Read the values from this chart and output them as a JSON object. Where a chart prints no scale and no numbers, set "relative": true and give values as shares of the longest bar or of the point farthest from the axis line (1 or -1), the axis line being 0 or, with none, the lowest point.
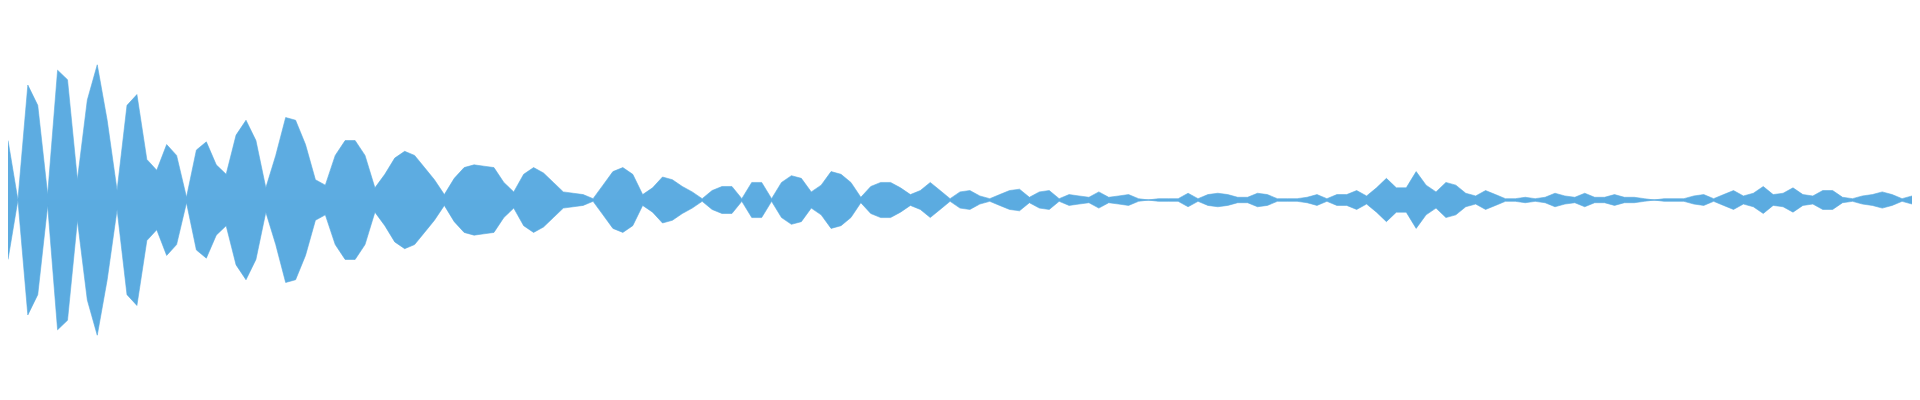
{
  "chart_data": {
    "type": "area",
    "relative": true,
    "ref_lines": [
      {
        "axis": "y",
        "value": 0,
        "color": "#5dace1"
      }
    ],
    "categories": [
      null,
      null,
      null,
      null,
      null,
      null,
      null,
      null,
      null,
      null,
      null,
      null,
      null,
      null,
      null,
      null,
      null,
      null,
      null,
      null,
      null,
      null,
      null,
      null,
      null,
      null,
      null,
      null,
      null,
      null,
      null,
      null,
      null,
      null,
      null,
      null,
      null,
      null,
      null,
      null,
      null,
      null,
      null,
      null,
      null,
      null,
      null,
      null,
      null,
      null,
      null,
      null,
      null,
      null,
      null,
      null,
      null,
      null,
      null,
      null,
      null,
      null,
      null,
      null,
      null,
      null,
      null,
      null,
      null,
      null,
      null,
      null,
      null,
      null,
      null,
      null,
      null,
      null,
      null,
      null,
      null,
      null,
      null,
      null,
      null,
      null,
      null,
      null,
      null,
      null,
      null,
      null,
      null,
      null,
      null,
      null,
      null,
      null,
      null,
      null,
      null,
      null,
      null,
      null,
      null,
      null,
      null,
      null,
      null,
      null,
      null,
      null,
      null,
      null,
      null,
      null,
      null,
      null,
      null,
      null,
      null,
      null,
      null,
      null,
      null,
      null,
      null,
      null,
      null,
      null,
      null,
      null,
      null,
      null,
      null,
      null,
      null,
      null,
      null,
      null,
      null,
      null,
      null,
      null,
      null,
      null,
      null,
      null,
      null,
      null,
      null,
      null,
      null,
      null,
      null,
      null,
      null,
      null,
      null,
      null,
      null,
      null,
      null,
      null,
      null,
      null,
      null,
      null,
      null,
      null,
      null,
      null,
      null,
      null,
      null,
      null,
      null,
      null,
      null,
      null,
      null,
      null,
      null,
      null,
      null,
      null,
      null,
      null,
      null,
      null,
      null,
      null,
      null
    ],
    "series": [
      {
        "color": "#5dace1",
        "values": [
          0.44,
          0,
          0.85,
          0.7,
          0.04,
          0.96,
          0.89,
          0.15,
          0.74,
          1,
          0.59,
          0.07,
          0.7,
          0.78,
          0.3,
          0.22,
          0.41,
          0.33,
          0.02,
          0.37,
          0.43,
          0.26,
          0.19,
          0.48,
          0.59,
          0.44,
          0.09,
          0.33,
          0.61,
          0.59,
          0.41,
          0.15,
          0.11,
          0.33,
          0.44,
          0.44,
          0.33,
          0.09,
          0.19,
          0.31,
          0.36,
          0.33,
          0.24,
          0.15,
          0.04,
          0.16,
          0.24,
          0.26,
          0.25,
          0.24,
          0.13,
          0.06,
          0.19,
          0.24,
          0.2,
          0.13,
          0.06,
          0.05,
          0.04,
          0.01,
          0.11,
          0.21,
          0.24,
          0.19,
          0.04,
          0.09,
          0.17,
          0.15,
          0.1,
          0.06,
          0.01,
          0.07,
          0.1,
          0.1,
          0.01,
          0.13,
          0.13,
          0.01,
          0.13,
          0.18,
          0.16,
          0.06,
          0.11,
          0.21,
          0.19,
          0.13,
          0.02,
          0.1,
          0.13,
          0.13,
          0.09,
          0.04,
          0.07,
          0.13,
          0.07,
          0.01,
          0.06,
          0.07,
          0.03,
          0.01,
          0.04,
          0.07,
          0.08,
          0.02,
          0.06,
          0.07,
          0.01,
          0.04,
          0.03,
          0.02,
          0.06,
          0.02,
          0.03,
          0.04,
          0.01,
          0,
          0.01,
          0.01,
          0.01,
          0.05,
          0.01,
          0.04,
          0.05,
          0.04,
          0.02,
          0.02,
          0.05,
          0.04,
          0.01,
          0.01,
          0.01,
          0.02,
          0.04,
          0.01,
          0.04,
          0.04,
          0.07,
          0.03,
          0.09,
          0.16,
          0.09,
          0.09,
          0.21,
          0.11,
          0.06,
          0.13,
          0.11,
          0.05,
          0.03,
          0.07,
          0.04,
          0.01,
          0.01,
          0.02,
          0.01,
          0.02,
          0.05,
          0.03,
          0.02,
          0.05,
          0.02,
          0.02,
          0.04,
          0.02,
          0.02,
          0.01,
          0,
          0.01,
          0.01,
          0.01,
          0.03,
          0.04,
          0.01,
          0.04,
          0.07,
          0.03,
          0.05,
          0.1,
          0.04,
          0.05,
          0.09,
          0.04,
          0.03,
          0.07,
          0.07,
          0.02,
          0.01,
          0.03,
          0.04,
          0.06,
          0.04,
          0.01,
          0.03
        ]
      },
      {
        "color": "#5babe0",
        "values": [
          -0.44,
          0,
          -0.85,
          -0.7,
          -0.04,
          -0.96,
          -0.89,
          -0.15,
          -0.74,
          -1,
          -0.59,
          -0.07,
          -0.7,
          -0.78,
          -0.3,
          -0.22,
          -0.41,
          -0.33,
          -0.02,
          -0.37,
          -0.43,
          -0.26,
          -0.19,
          -0.48,
          -0.59,
          -0.44,
          -0.09,
          -0.33,
          -0.61,
          -0.59,
          -0.41,
          -0.15,
          -0.11,
          -0.33,
          -0.44,
          -0.44,
          -0.33,
          -0.09,
          -0.19,
          -0.31,
          -0.36,
          -0.33,
          -0.24,
          -0.15,
          -0.04,
          -0.16,
          -0.24,
          -0.26,
          -0.25,
          -0.24,
          -0.13,
          -0.06,
          -0.19,
          -0.24,
          -0.2,
          -0.13,
          -0.06,
          -0.05,
          -0.04,
          -0.01,
          -0.11,
          -0.21,
          -0.24,
          -0.19,
          -0.04,
          -0.09,
          -0.17,
          -0.15,
          -0.1,
          -0.06,
          -0.01,
          -0.07,
          -0.1,
          -0.1,
          -0.01,
          -0.13,
          -0.13,
          -0.01,
          -0.13,
          -0.18,
          -0.16,
          -0.06,
          -0.11,
          -0.21,
          -0.19,
          -0.13,
          -0.02,
          -0.1,
          -0.13,
          -0.13,
          -0.09,
          -0.04,
          -0.07,
          -0.13,
          -0.07,
          -0.01,
          -0.06,
          -0.07,
          -0.03,
          -0.01,
          -0.04,
          -0.07,
          -0.08,
          -0.02,
          -0.06,
          -0.07,
          -0.01,
          -0.04,
          -0.03,
          -0.02,
          -0.06,
          -0.02,
          -0.03,
          -0.04,
          -0.01,
          0,
          -0.01,
          -0.01,
          -0.01,
          -0.05,
          -0.01,
          -0.04,
          -0.05,
          -0.04,
          -0.02,
          -0.02,
          -0.05,
          -0.04,
          -0.01,
          -0.01,
          -0.01,
          -0.02,
          -0.04,
          -0.01,
          -0.04,
          -0.04,
          -0.07,
          -0.03,
          -0.09,
          -0.16,
          -0.09,
          -0.09,
          -0.21,
          -0.11,
          -0.06,
          -0.13,
          -0.11,
          -0.05,
          -0.03,
          -0.07,
          -0.04,
          -0.01,
          -0.01,
          -0.02,
          -0.01,
          -0.02,
          -0.05,
          -0.03,
          -0.02,
          -0.05,
          -0.02,
          -0.02,
          -0.04,
          -0.02,
          -0.02,
          -0.01,
          0,
          -0.01,
          -0.01,
          -0.01,
          -0.03,
          -0.04,
          -0.01,
          -0.04,
          -0.07,
          -0.03,
          -0.05,
          -0.1,
          -0.04,
          -0.05,
          -0.09,
          -0.04,
          -0.03,
          -0.07,
          -0.07,
          -0.02,
          -0.01,
          -0.03,
          -0.04,
          -0.06,
          -0.04,
          -0.01,
          -0.03
        ]
      }
    ]
  }
}
